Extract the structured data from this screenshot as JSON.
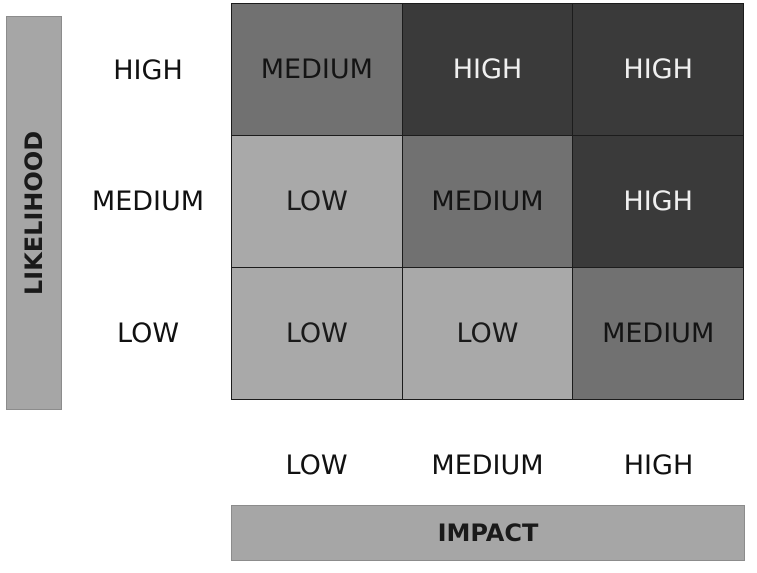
{
  "axes": {
    "y_title": "LIKELIHOOD",
    "x_title": "IMPACT",
    "y_levels": [
      "HIGH",
      "MEDIUM",
      "LOW"
    ],
    "x_levels": [
      "LOW",
      "MEDIUM",
      "HIGH"
    ]
  },
  "matrix": {
    "rows": [
      [
        "MEDIUM",
        "HIGH",
        "HIGH"
      ],
      [
        "LOW",
        "MEDIUM",
        "HIGH"
      ],
      [
        "LOW",
        "LOW",
        "MEDIUM"
      ]
    ]
  },
  "colors": {
    "low": "#a9a9a9",
    "medium": "#717171",
    "high": "#3a3a3a",
    "axis_bar": "#a6a6a6"
  }
}
